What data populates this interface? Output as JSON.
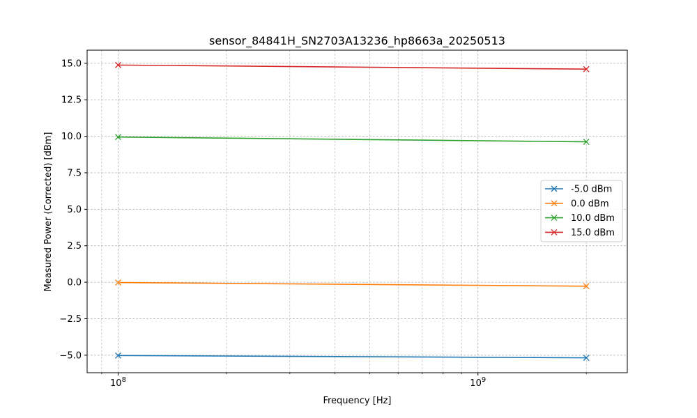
{
  "chart_data": {
    "type": "line",
    "title": "sensor_84841H_SN2703A13236_hp8663a_20250513",
    "xlabel": "Frequency [Hz]",
    "ylabel": "Measured Power (Corrected) [dBm]",
    "x_scale": "log",
    "xlim": [
      82000000.0,
      2600000000.0
    ],
    "ylim": [
      -6.2,
      15.9
    ],
    "grid": true,
    "legend_position": "center-right",
    "x": [
      100000000,
      2000000000
    ],
    "x_ticks": [
      {
        "value": 100000000,
        "label": "10^8"
      },
      {
        "value": 1000000000,
        "label": "10^9"
      }
    ],
    "y_ticks": [
      {
        "value": -5.0,
        "label": "−5.0"
      },
      {
        "value": -2.5,
        "label": "−2.5"
      },
      {
        "value": 0.0,
        "label": "0.0"
      },
      {
        "value": 2.5,
        "label": "2.5"
      },
      {
        "value": 5.0,
        "label": "5.0"
      },
      {
        "value": 7.5,
        "label": "7.5"
      },
      {
        "value": 10.0,
        "label": "10.0"
      },
      {
        "value": 12.5,
        "label": "12.5"
      },
      {
        "value": 15.0,
        "label": "15.0"
      }
    ],
    "series": [
      {
        "name": "-5.0 dBm",
        "color": "#1f77b4",
        "values": [
          -5.02,
          -5.18
        ]
      },
      {
        "name": "0.0 dBm",
        "color": "#ff7f0e",
        "values": [
          -0.02,
          -0.27
        ]
      },
      {
        "name": "10.0 dBm",
        "color": "#2ca02c",
        "values": [
          9.95,
          9.62
        ]
      },
      {
        "name": "15.0 dBm",
        "color": "#d62728",
        "values": [
          14.88,
          14.6
        ]
      }
    ],
    "marker": "x"
  }
}
